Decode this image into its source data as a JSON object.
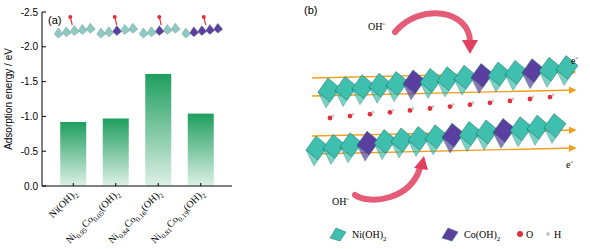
{
  "chart_data": {
    "type": "bar",
    "title": "(a)",
    "y_label": "Adsorption energy / eV",
    "categories": [
      "Ni(OH)2",
      "Ni0.95Co0.05(OH)2",
      "Ni0.84Co0.16(OH)2",
      "Ni0.81Co0.19(OH)2"
    ],
    "values": [
      -0.92,
      -0.97,
      -1.61,
      -1.04
    ],
    "color": "#1e9e5e",
    "ylim": [
      0,
      -2.5
    ],
    "yticks": [
      {
        "value": 0,
        "label": "0.0"
      },
      -0.5,
      {
        "value": -1,
        "label": "-1.0"
      },
      -1.5,
      {
        "value": -2,
        "label": "-2.0"
      },
      -2.5
    ],
    "grid": false
  },
  "diagram": {
    "label": "(b)",
    "ion_labels": [
      "OH⁻",
      "OH⁻"
    ],
    "electron_labels": [
      "e⁻",
      "e⁻"
    ],
    "legend": [
      {
        "label": "Ni(OH)2",
        "color": "#3fbfae"
      },
      {
        "label": "Co(OH)2",
        "color": "#5a3fa0"
      },
      {
        "label": "O",
        "color": "#e0303a"
      },
      {
        "label": "H",
        "color": "#c8c8c8"
      }
    ]
  }
}
